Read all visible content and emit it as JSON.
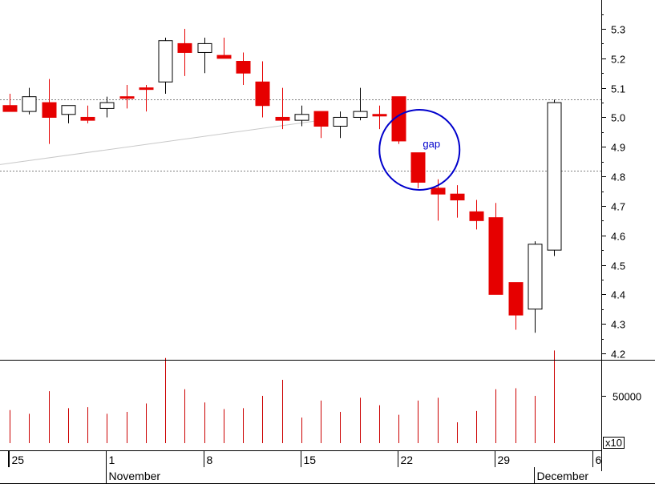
{
  "chart_data": {
    "type": "candlestick",
    "title": "",
    "xlabel": "",
    "ylabel": "",
    "ylim": [
      4.17,
      5.42
    ],
    "yticks": [
      4.2,
      4.3,
      4.4,
      4.5,
      4.6,
      4.7,
      4.8,
      4.9,
      5.0,
      5.1,
      5.2,
      5.3
    ],
    "ytick_labels": [
      "4.2",
      "4.3",
      "4.4",
      "4.5",
      "4.6",
      "4.7",
      "4.8",
      "4.9",
      "5.0",
      "5.1",
      "5.2",
      "5.3"
    ],
    "grid": false,
    "colors": {
      "down": "#e60000",
      "up": "#ffffff",
      "wick": "#000000",
      "volume": "#cc0000",
      "annotation": "#0000cc",
      "reference": "#808080"
    },
    "candles": [
      {
        "date": "2010-10-25",
        "open": 5.04,
        "high": 5.08,
        "low": 5.02,
        "close": 5.02
      },
      {
        "date": "2010-10-26",
        "open": 5.02,
        "high": 5.1,
        "low": 5.01,
        "close": 5.07
      },
      {
        "date": "2010-10-27",
        "open": 5.05,
        "high": 5.13,
        "low": 4.91,
        "close": 5.0
      },
      {
        "date": "2010-10-28",
        "open": 5.01,
        "high": 5.04,
        "low": 4.98,
        "close": 5.04
      },
      {
        "date": "2010-10-29",
        "open": 5.0,
        "high": 5.04,
        "low": 4.98,
        "close": 4.99
      },
      {
        "date": "2010-11-01",
        "open": 5.03,
        "high": 5.07,
        "low": 5.0,
        "close": 5.05
      },
      {
        "date": "2010-11-02",
        "open": 5.07,
        "high": 5.11,
        "low": 5.03,
        "close": 5.07
      },
      {
        "date": "2010-11-03",
        "open": 5.1,
        "high": 5.11,
        "low": 5.02,
        "close": 5.1
      },
      {
        "date": "2010-11-04",
        "open": 5.12,
        "high": 5.27,
        "low": 5.08,
        "close": 5.26
      },
      {
        "date": "2010-11-05",
        "open": 5.25,
        "high": 5.3,
        "low": 5.14,
        "close": 5.22
      },
      {
        "date": "2010-11-08",
        "open": 5.22,
        "high": 5.27,
        "low": 5.15,
        "close": 5.25
      },
      {
        "date": "2010-11-09",
        "open": 5.21,
        "high": 5.27,
        "low": 5.2,
        "close": 5.2
      },
      {
        "date": "2010-11-10",
        "open": 5.19,
        "high": 5.22,
        "low": 5.11,
        "close": 5.15
      },
      {
        "date": "2010-11-11",
        "open": 5.12,
        "high": 5.19,
        "low": 5.0,
        "close": 5.04
      },
      {
        "date": "2010-11-12",
        "open": 5.0,
        "high": 5.1,
        "low": 4.96,
        "close": 4.99
      },
      {
        "date": "2010-11-15",
        "open": 4.99,
        "high": 5.04,
        "low": 4.97,
        "close": 5.01
      },
      {
        "date": "2010-11-16",
        "open": 5.02,
        "high": 5.02,
        "low": 4.93,
        "close": 4.97
      },
      {
        "date": "2010-11-17",
        "open": 4.97,
        "high": 5.02,
        "low": 4.93,
        "close": 5.0
      },
      {
        "date": "2010-11-18",
        "open": 5.0,
        "high": 5.1,
        "low": 4.99,
        "close": 5.02
      },
      {
        "date": "2010-11-19",
        "open": 5.01,
        "high": 5.04,
        "low": 4.96,
        "close": 5.01
      },
      {
        "date": "2010-11-22",
        "open": 5.07,
        "high": 5.07,
        "low": 4.91,
        "close": 4.92
      },
      {
        "date": "2010-11-23",
        "open": 4.88,
        "high": 4.88,
        "low": 4.76,
        "close": 4.78
      },
      {
        "date": "2010-11-24",
        "open": 4.76,
        "high": 4.79,
        "low": 4.65,
        "close": 4.74
      },
      {
        "date": "2010-11-25",
        "open": 4.74,
        "high": 4.77,
        "low": 4.66,
        "close": 4.72
      },
      {
        "date": "2010-11-26",
        "open": 4.68,
        "high": 4.72,
        "low": 4.62,
        "close": 4.65
      },
      {
        "date": "2010-11-29",
        "open": 4.66,
        "high": 4.71,
        "low": 4.4,
        "close": 4.4
      },
      {
        "date": "2010-11-30",
        "open": 4.44,
        "high": 4.44,
        "low": 4.28,
        "close": 4.33
      },
      {
        "date": "2010-12-01",
        "open": 4.35,
        "high": 4.58,
        "low": 4.27,
        "close": 4.57
      },
      {
        "date": "2010-12-02",
        "open": 4.55,
        "high": 5.06,
        "low": 4.53,
        "close": 5.05
      }
    ],
    "volume": {
      "tick_values": [
        50000
      ],
      "tick_labels": [
        "50000"
      ],
      "multiplier_label": "x10",
      "max": 95000,
      "values": [
        35000,
        31000,
        55000,
        37000,
        38000,
        31000,
        33000,
        42000,
        90000,
        57000,
        43000,
        36000,
        37000,
        50000,
        67000,
        27000,
        45000,
        33000,
        48000,
        40000,
        30000,
        45000,
        48000,
        22000,
        34000,
        57000,
        58000,
        50000,
        98000
      ]
    },
    "x_axis": {
      "day_labels": [
        {
          "text": "25",
          "date": "2010-10-25"
        },
        {
          "text": "1",
          "date": "2010-11-01"
        },
        {
          "text": "8",
          "date": "2010-11-08"
        },
        {
          "text": "15",
          "date": "2010-11-15"
        },
        {
          "text": "22",
          "date": "2010-11-22"
        },
        {
          "text": "29",
          "date": "2010-11-29"
        },
        {
          "text": "6",
          "date": "2010-12-06"
        }
      ],
      "month_labels": [
        {
          "text": "November",
          "date": "2010-11-01"
        },
        {
          "text": "December",
          "date": "2010-12-01"
        }
      ]
    },
    "reference_lines": [
      {
        "value": 5.06,
        "style": "dotted"
      },
      {
        "value": 4.82,
        "style": "dotted"
      }
    ],
    "trend_line": {
      "from": {
        "date": "2010-10-25",
        "value": 4.84
      },
      "to": {
        "date": "2010-11-16",
        "value": 4.99
      }
    },
    "annotations": [
      {
        "text": "gap",
        "date": "2010-11-23",
        "value": 4.89,
        "shape": "circle"
      }
    ]
  }
}
